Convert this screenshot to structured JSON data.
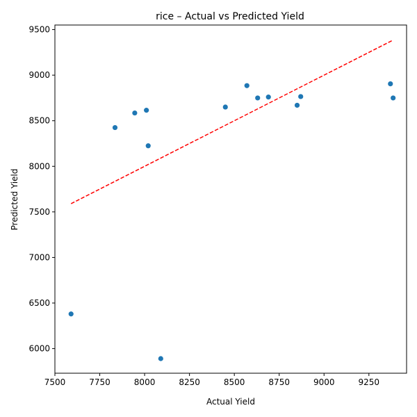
{
  "chart_data": {
    "type": "scatter",
    "title": "rice – Actual vs Predicted Yield",
    "xlabel": "Actual Yield",
    "ylabel": "Predicted Yield",
    "xlim": [
      7500,
      9460
    ],
    "ylim": [
      5730,
      9550
    ],
    "xticks": [
      7500,
      7750,
      8000,
      8250,
      8500,
      8750,
      9000,
      9250
    ],
    "yticks": [
      6000,
      6500,
      7000,
      7500,
      8000,
      8500,
      9000,
      9500
    ],
    "grid": false,
    "legend": "none",
    "points": [
      {
        "x": 7590,
        "y": 6380
      },
      {
        "x": 7835,
        "y": 8425
      },
      {
        "x": 7945,
        "y": 8585
      },
      {
        "x": 8010,
        "y": 8615
      },
      {
        "x": 8020,
        "y": 8225
      },
      {
        "x": 8090,
        "y": 5890
      },
      {
        "x": 8450,
        "y": 8650
      },
      {
        "x": 8570,
        "y": 8885
      },
      {
        "x": 8630,
        "y": 8750
      },
      {
        "x": 8690,
        "y": 8760
      },
      {
        "x": 8850,
        "y": 8670
      },
      {
        "x": 8870,
        "y": 8765
      },
      {
        "x": 9370,
        "y": 8905
      },
      {
        "x": 9385,
        "y": 8750
      }
    ],
    "reference_line": {
      "x": [
        7590,
        9385
      ],
      "y": [
        7590,
        9385
      ]
    },
    "colors": {
      "points": "#1f77b4",
      "reference_line": "#ff0000"
    }
  }
}
